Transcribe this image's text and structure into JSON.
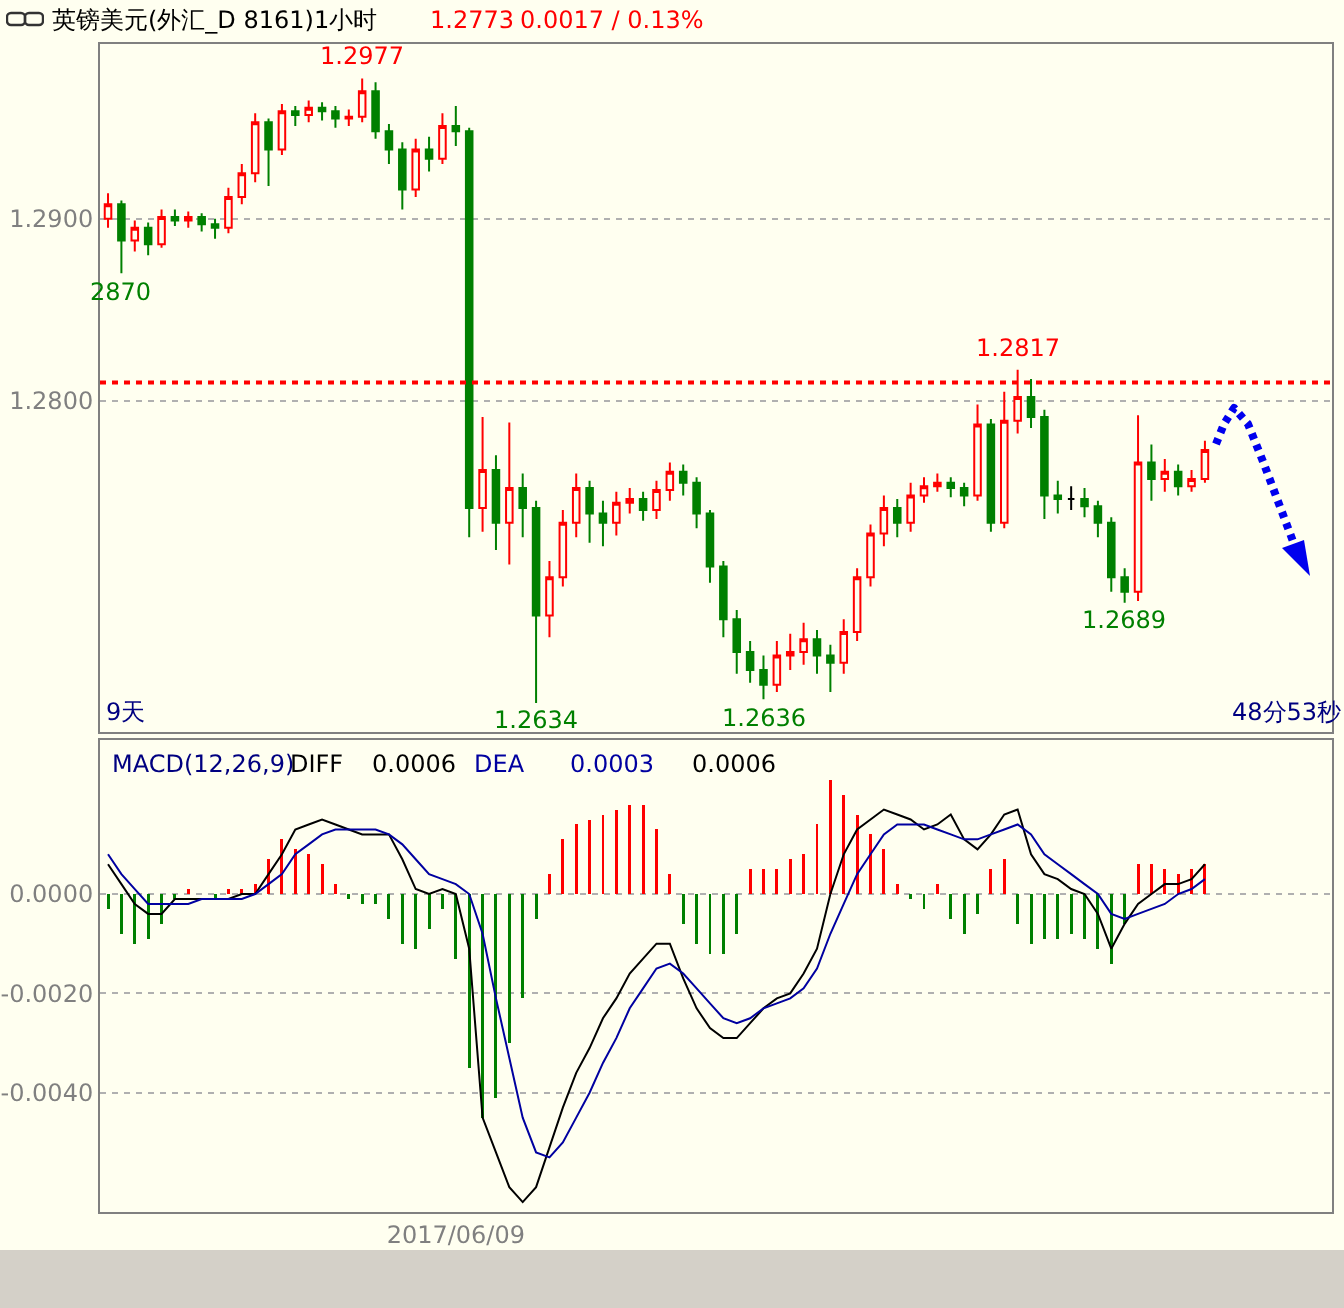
{
  "chart_data": [
    {
      "type": "candlestick",
      "title": "英镑美元(外汇_D 8161)1小时",
      "categories": [
        null,
        null,
        null,
        null,
        null,
        null,
        null,
        null,
        null,
        null,
        null,
        null,
        null,
        null,
        null,
        null,
        null,
        null,
        null,
        null,
        null,
        null,
        null,
        null,
        null,
        null,
        null,
        null,
        null,
        null,
        null,
        null,
        null,
        null,
        null,
        null,
        null,
        null,
        null,
        null,
        null,
        null,
        null,
        null,
        null,
        null,
        null,
        null,
        null,
        null,
        null,
        null,
        null,
        null,
        null,
        null,
        null,
        null,
        null,
        null,
        null,
        null,
        null,
        null,
        null,
        null,
        null,
        null,
        null,
        null,
        null,
        null,
        null,
        null,
        null,
        null,
        null,
        null,
        null,
        null,
        null,
        null,
        null
      ],
      "ohlc": [
        [
          1.29,
          1.2914,
          1.2895,
          1.2908
        ],
        [
          1.2908,
          1.291,
          1.287,
          1.2888
        ],
        [
          1.2888,
          1.2899,
          1.2882,
          1.2895
        ],
        [
          1.2895,
          1.2898,
          1.288,
          1.2886
        ],
        [
          1.2886,
          1.2905,
          1.2884,
          1.2901
        ],
        [
          1.2901,
          1.2905,
          1.2896,
          1.2899
        ],
        [
          1.2899,
          1.2904,
          1.2895,
          1.2901
        ],
        [
          1.2901,
          1.2903,
          1.2893,
          1.2897
        ],
        [
          1.2897,
          1.29,
          1.2889,
          1.2895
        ],
        [
          1.2895,
          1.2917,
          1.2892,
          1.2912
        ],
        [
          1.2912,
          1.293,
          1.2908,
          1.2925
        ],
        [
          1.2925,
          1.2958,
          1.292,
          1.2953
        ],
        [
          1.2953,
          1.2955,
          1.2918,
          1.2938
        ],
        [
          1.2938,
          1.2963,
          1.2935,
          1.2959
        ],
        [
          1.2959,
          1.2962,
          1.2951,
          1.2957
        ],
        [
          1.2957,
          1.2965,
          1.2953,
          1.2961
        ],
        [
          1.2961,
          1.2964,
          1.2954,
          1.2959
        ],
        [
          1.2959,
          1.2962,
          1.295,
          1.2955
        ],
        [
          1.2955,
          1.296,
          1.2951,
          1.2956
        ],
        [
          1.2956,
          1.2977,
          1.2953,
          1.297
        ],
        [
          1.297,
          1.2975,
          1.2944,
          1.2948
        ],
        [
          1.2948,
          1.2952,
          1.293,
          1.2938
        ],
        [
          1.2938,
          1.2942,
          1.2905,
          1.2916
        ],
        [
          1.2916,
          1.2944,
          1.2912,
          1.2938
        ],
        [
          1.2938,
          1.2945,
          1.2926,
          1.2933
        ],
        [
          1.2933,
          1.2958,
          1.293,
          1.2951
        ],
        [
          1.2951,
          1.2962,
          1.294,
          1.2948
        ],
        [
          1.2948,
          1.295,
          1.2725,
          1.2741
        ],
        [
          1.2741,
          1.2791,
          1.2728,
          1.2762
        ],
        [
          1.2762,
          1.277,
          1.2718,
          1.2733
        ],
        [
          1.2733,
          1.2788,
          1.271,
          1.2752
        ],
        [
          1.2752,
          1.276,
          1.2725,
          1.2741
        ],
        [
          1.2741,
          1.2745,
          1.2634,
          1.2682
        ],
        [
          1.2682,
          1.2712,
          1.267,
          1.2703
        ],
        [
          1.2703,
          1.274,
          1.2698,
          1.2733
        ],
        [
          1.2733,
          1.276,
          1.2725,
          1.2752
        ],
        [
          1.2752,
          1.2756,
          1.2722,
          1.2738
        ],
        [
          1.2738,
          1.2745,
          1.272,
          1.2733
        ],
        [
          1.2733,
          1.275,
          1.2726,
          1.2744
        ],
        [
          1.2744,
          1.2752,
          1.2738,
          1.2746
        ],
        [
          1.2746,
          1.275,
          1.2734,
          1.274
        ],
        [
          1.274,
          1.2756,
          1.2735,
          1.2751
        ],
        [
          1.2751,
          1.2766,
          1.2745,
          1.2761
        ],
        [
          1.2761,
          1.2765,
          1.2748,
          1.2755
        ],
        [
          1.2755,
          1.2758,
          1.273,
          1.2738
        ],
        [
          1.2738,
          1.274,
          1.27,
          1.2709
        ],
        [
          1.2709,
          1.2712,
          1.267,
          1.268
        ],
        [
          1.268,
          1.2685,
          1.265,
          1.2662
        ],
        [
          1.2662,
          1.2668,
          1.2645,
          1.2652
        ],
        [
          1.2652,
          1.266,
          1.2636,
          1.2644
        ],
        [
          1.2644,
          1.2668,
          1.264,
          1.266
        ],
        [
          1.266,
          1.2672,
          1.2652,
          1.2662
        ],
        [
          1.2662,
          1.2678,
          1.2655,
          1.2669
        ],
        [
          1.2669,
          1.2674,
          1.265,
          1.266
        ],
        [
          1.266,
          1.2666,
          1.264,
          1.2656
        ],
        [
          1.2656,
          1.268,
          1.265,
          1.2673
        ],
        [
          1.2673,
          1.2708,
          1.2668,
          1.2703
        ],
        [
          1.2703,
          1.2732,
          1.2698,
          1.2727
        ],
        [
          1.2727,
          1.2748,
          1.272,
          1.2741
        ],
        [
          1.2741,
          1.2746,
          1.2725,
          1.2733
        ],
        [
          1.2733,
          1.2755,
          1.2728,
          1.2748
        ],
        [
          1.2748,
          1.2758,
          1.2744,
          1.2753
        ],
        [
          1.2753,
          1.276,
          1.275,
          1.2755
        ],
        [
          1.2755,
          1.2758,
          1.2747,
          1.2752
        ],
        [
          1.2752,
          1.2755,
          1.2742,
          1.2748
        ],
        [
          1.2748,
          1.2798,
          1.2745,
          1.2787
        ],
        [
          1.2787,
          1.279,
          1.2728,
          1.2733
        ],
        [
          1.2733,
          1.2805,
          1.273,
          1.2789
        ],
        [
          1.2789,
          1.2817,
          1.2782,
          1.2802
        ],
        [
          1.2802,
          1.2812,
          1.2785,
          1.2791
        ],
        [
          1.2791,
          1.2795,
          1.2735,
          1.2748
        ],
        [
          1.2748,
          1.2756,
          1.2738,
          1.2746
        ],
        [
          1.2746,
          1.2753,
          1.274,
          1.2746
        ],
        [
          1.2746,
          1.2752,
          1.2736,
          1.2742
        ],
        [
          1.2742,
          1.2745,
          1.2725,
          1.2733
        ],
        [
          1.2733,
          1.2736,
          1.2695,
          1.2703
        ],
        [
          1.2703,
          1.2708,
          1.2689,
          1.2695
        ],
        [
          1.2695,
          1.2792,
          1.269,
          1.2766
        ],
        [
          1.2766,
          1.2776,
          1.2745,
          1.2757
        ],
        [
          1.2757,
          1.2768,
          1.275,
          1.2761
        ],
        [
          1.2761,
          1.2765,
          1.2748,
          1.2753
        ],
        [
          1.2753,
          1.2762,
          1.275,
          1.2757
        ],
        [
          1.2757,
          1.2778,
          1.2755,
          1.2773
        ]
      ],
      "colors": [
        "#ff0000",
        "#008000",
        "#ff0000",
        "#008000",
        "#ff0000",
        "#008000",
        "#ff0000",
        "#008000",
        "#008000",
        "#ff0000",
        "#ff0000",
        "#ff0000",
        "#008000",
        "#ff0000",
        "#008000",
        "#ff0000",
        "#008000",
        "#008000",
        "#ff0000",
        "#ff0000",
        "#008000",
        "#008000",
        "#008000",
        "#ff0000",
        "#008000",
        "#ff0000",
        "#008000",
        "#008000",
        "#ff0000",
        "#008000",
        "#ff0000",
        "#008000",
        "#008000",
        "#ff0000",
        "#ff0000",
        "#ff0000",
        "#008000",
        "#008000",
        "#ff0000",
        "#ff0000",
        "#008000",
        "#ff0000",
        "#ff0000",
        "#008000",
        "#008000",
        "#008000",
        "#008000",
        "#008000",
        "#008000",
        "#008000",
        "#ff0000",
        "#ff0000",
        "#ff0000",
        "#008000",
        "#008000",
        "#ff0000",
        "#ff0000",
        "#ff0000",
        "#ff0000",
        "#008000",
        "#ff0000",
        "#ff0000",
        "#ff0000",
        "#008000",
        "#008000",
        "#ff0000",
        "#008000",
        "#ff0000",
        "#ff0000",
        "#008000",
        "#008000",
        "#008000",
        "#000000",
        "#008000",
        "#008000",
        "#008000",
        "#008000",
        "#ff0000",
        "#008000",
        "#ff0000",
        "#008000",
        "#ff0000",
        "#ff0000"
      ],
      "ylim": [
        1.2618,
        1.2996
      ],
      "yticks": [
        {
          "value": 1.28,
          "label": "1.2800"
        },
        {
          "value": 1.29,
          "label": "1.2900"
        }
      ],
      "grid": "y",
      "tick_labels": "y",
      "ref_lines": [
        {
          "axis": "y",
          "value": 1.281,
          "color": "#ff0000",
          "line_style": "dotted"
        }
      ],
      "annotations": [
        "1.2773",
        "0.0017 / 0.13%",
        {
          "text": "1.2977",
          "y": 1.2977
        },
        {
          "text": "2870",
          "y": 1.287
        },
        {
          "text": "1.2634",
          "y": 1.2634
        },
        {
          "text": "1.2636",
          "y": 1.2636
        },
        {
          "text": "1.2817",
          "y": 1.2817
        },
        {
          "text": "1.2689",
          "y": 1.2689
        },
        "9天",
        "48分53秒"
      ]
    },
    {
      "type": "bar",
      "title": "MACD(12,26,9)",
      "categories": [
        null,
        null,
        null,
        null,
        null,
        null,
        null,
        null,
        null,
        null,
        null,
        null,
        null,
        null,
        null,
        null,
        null,
        null,
        null,
        null,
        null,
        null,
        null,
        null,
        null,
        null,
        "2017/06/09",
        null,
        null,
        null,
        null,
        null,
        null,
        null,
        null,
        null,
        null,
        null,
        null,
        null,
        null,
        null,
        null,
        null,
        null,
        null,
        null,
        null,
        null,
        null,
        null,
        null,
        null,
        null,
        null,
        null,
        null,
        null,
        null,
        null,
        null,
        null,
        null,
        null,
        null,
        null,
        null,
        null,
        null,
        null,
        null,
        null,
        null,
        null,
        null,
        null,
        null,
        null,
        null,
        null,
        null,
        null,
        null
      ],
      "series": [
        {
          "type": "bar",
          "values": [
            -0.0003,
            -0.0008,
            -0.001,
            -0.0009,
            -0.0006,
            -0.0001,
            0.0001,
            0.0,
            -0.0001,
            0.0001,
            0.0001,
            0.0002,
            0.0007,
            0.0011,
            0.0009,
            0.0008,
            0.0006,
            0.0002,
            -0.0001,
            -0.0002,
            -0.0002,
            -0.0005,
            -0.001,
            -0.0011,
            -0.0007,
            -0.0003,
            -0.0013,
            -0.0035,
            -0.0045,
            -0.0041,
            -0.003,
            -0.0021,
            -0.0005,
            0.0004,
            0.0011,
            0.0014,
            0.0015,
            0.0016,
            0.0017,
            0.0018,
            0.0018,
            0.0013,
            0.0004,
            -0.0006,
            -0.001,
            -0.0012,
            -0.0012,
            -0.0008,
            0.0005,
            0.0005,
            0.0005,
            0.0007,
            0.0008,
            0.0014,
            0.0023,
            0.002,
            0.0016,
            0.0012,
            0.0009,
            0.0002,
            -0.0001,
            -0.0003,
            0.0002,
            -0.0005,
            -0.0008,
            -0.0004,
            0.0005,
            0.0007,
            -0.0006,
            -0.001,
            -0.0009,
            -0.0009,
            -0.0008,
            -0.0009,
            -0.0011,
            -0.0014,
            -0.0006,
            0.0006,
            0.0006,
            0.0005,
            0.0004,
            0.0005,
            0.0006
          ],
          "colors": [
            "#008000",
            "#008000",
            "#008000",
            "#008000",
            "#008000",
            "#008000",
            "#ff0000",
            "#008000",
            "#008000",
            "#ff0000",
            "#ff0000",
            "#ff0000",
            "#ff0000",
            "#ff0000",
            "#ff0000",
            "#ff0000",
            "#ff0000",
            "#ff0000",
            "#008000",
            "#008000",
            "#008000",
            "#008000",
            "#008000",
            "#008000",
            "#008000",
            "#008000",
            "#008000",
            "#008000",
            "#008000",
            "#008000",
            "#008000",
            "#008000",
            "#008000",
            "#ff0000",
            "#ff0000",
            "#ff0000",
            "#ff0000",
            "#ff0000",
            "#ff0000",
            "#ff0000",
            "#ff0000",
            "#ff0000",
            "#ff0000",
            "#008000",
            "#008000",
            "#008000",
            "#008000",
            "#008000",
            "#ff0000",
            "#ff0000",
            "#ff0000",
            "#ff0000",
            "#ff0000",
            "#ff0000",
            "#ff0000",
            "#ff0000",
            "#ff0000",
            "#ff0000",
            "#ff0000",
            "#ff0000",
            "#008000",
            "#008000",
            "#ff0000",
            "#008000",
            "#008000",
            "#008000",
            "#ff0000",
            "#ff0000",
            "#008000",
            "#008000",
            "#008000",
            "#008000",
            "#008000",
            "#008000",
            "#008000",
            "#008000",
            "#008000",
            "#ff0000",
            "#ff0000",
            "#ff0000",
            "#ff0000",
            "#ff0000",
            "#ff0000"
          ]
        },
        {
          "type": "line",
          "name": "DIFF",
          "color": "#000000",
          "values": [
            0.0006,
            0.0002,
            -0.0002,
            -0.0004,
            -0.0004,
            -0.0001,
            -0.0001,
            -0.0001,
            -0.0001,
            -0.0001,
            0.0,
            0.0,
            0.0004,
            0.0008,
            0.0013,
            0.0014,
            0.0015,
            0.0014,
            0.0013,
            0.0012,
            0.0012,
            0.0012,
            0.0007,
            0.0001,
            0.0,
            0.0001,
            0.0,
            -0.0011,
            -0.0045,
            -0.0052,
            -0.0059,
            -0.0062,
            -0.0059,
            -0.0051,
            -0.0043,
            -0.0036,
            -0.0031,
            -0.0025,
            -0.0021,
            -0.0016,
            -0.0013,
            -0.001,
            -0.001,
            -0.0017,
            -0.0023,
            -0.0027,
            -0.0029,
            -0.0029,
            -0.0026,
            -0.0023,
            -0.0021,
            -0.002,
            -0.0016,
            -0.0011,
            0.0,
            0.0008,
            0.0013,
            0.0015,
            0.0017,
            0.0016,
            0.0015,
            0.0013,
            0.0014,
            0.0016,
            0.0011,
            0.0009,
            0.0012,
            0.0016,
            0.0017,
            0.0008,
            0.0004,
            0.0003,
            0.0001,
            0.0,
            -0.0004,
            -0.0011,
            -0.0006,
            -0.0002,
            0.0,
            0.0002,
            0.0002,
            0.0003,
            0.0006
          ]
        },
        {
          "type": "line",
          "name": "DEA",
          "color": "#0000a0",
          "values": [
            0.0008,
            0.0004,
            0.0001,
            -0.0002,
            -0.0002,
            -0.0002,
            -0.0002,
            -0.0001,
            -0.0001,
            -0.0001,
            -0.0001,
            0.0,
            0.0002,
            0.0004,
            0.0008,
            0.001,
            0.0012,
            0.0013,
            0.0013,
            0.0013,
            0.0013,
            0.0012,
            0.001,
            0.0007,
            0.0004,
            0.0003,
            0.0002,
            0.0,
            -0.0008,
            -0.0021,
            -0.0033,
            -0.0045,
            -0.0052,
            -0.0053,
            -0.005,
            -0.0045,
            -0.004,
            -0.0034,
            -0.0029,
            -0.0023,
            -0.0019,
            -0.0015,
            -0.0014,
            -0.0016,
            -0.0019,
            -0.0022,
            -0.0025,
            -0.0026,
            -0.0025,
            -0.0023,
            -0.0022,
            -0.0021,
            -0.0019,
            -0.0015,
            -0.0008,
            -0.0002,
            0.0004,
            0.0008,
            0.0012,
            0.0014,
            0.0014,
            0.0014,
            0.0013,
            0.0012,
            0.0011,
            0.0011,
            0.0012,
            0.0013,
            0.0014,
            0.0012,
            0.0008,
            0.0006,
            0.0004,
            0.0002,
            0.0,
            -0.0004,
            -0.0005,
            -0.0004,
            -0.0003,
            -0.0002,
            0.0,
            0.0001,
            0.0003
          ]
        }
      ],
      "ylim": [
        -0.0064,
        0.0031
      ],
      "yticks": [
        {
          "value": 0,
          "label": "0.0000"
        },
        {
          "value": -0.002,
          "label": "-0.0020"
        },
        {
          "value": -0.004,
          "label": "-0.0040"
        }
      ],
      "grid": "y",
      "annotations": [
        "0.0006",
        "0.0003",
        "0.0006"
      ]
    }
  ]
}
